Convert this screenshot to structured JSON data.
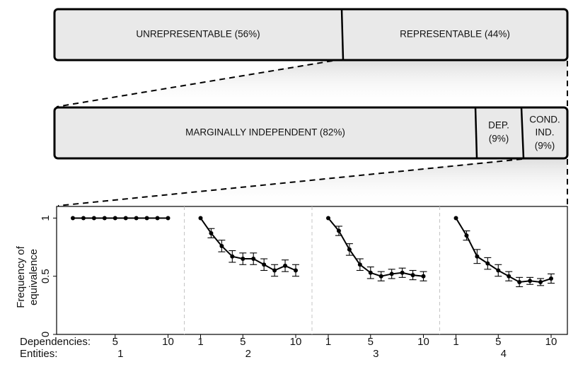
{
  "top_bar": {
    "segments": [
      {
        "label": "UNREPRESENTABLE (56%)",
        "percent": 56
      },
      {
        "label": "REPRESENTABLE (44%)",
        "percent": 44
      }
    ]
  },
  "middle_bar": {
    "segments": [
      {
        "label_lines": [
          "MARGINALLY INDEPENDENT (82%)"
        ],
        "percent": 82
      },
      {
        "label_lines": [
          "DEP.",
          "(9%)"
        ],
        "percent": 9
      },
      {
        "label_lines": [
          "COND.",
          "IND.",
          "(9%)"
        ],
        "percent": 9
      }
    ]
  },
  "chart_data": {
    "type": "line",
    "ylabel": "Frequency of\nequivalence",
    "ylim": [
      0,
      1.1
    ],
    "y_ticks": [
      {
        "value": 0,
        "label": "0"
      },
      {
        "value": 0.5,
        "label": "0.5"
      },
      {
        "value": 1,
        "label": "1"
      }
    ],
    "x_row_label": "Dependencies:",
    "facet_row_label": "Entities:",
    "grid": false,
    "panels": [
      {
        "entities": "1",
        "x_ticks": [
          {
            "value": 5,
            "label": "5"
          },
          {
            "value": 10,
            "label": "10"
          }
        ],
        "x": [
          1,
          2,
          3,
          4,
          5,
          6,
          7,
          8,
          9,
          10
        ],
        "values": [
          1,
          1,
          1,
          1,
          1,
          1,
          1,
          1,
          1,
          1
        ],
        "error": [
          0,
          0,
          0,
          0,
          0,
          0,
          0,
          0,
          0,
          0
        ]
      },
      {
        "entities": "2",
        "x_ticks": [
          {
            "value": 1,
            "label": "1"
          },
          {
            "value": 5,
            "label": "5"
          },
          {
            "value": 10,
            "label": "10"
          }
        ],
        "x": [
          1,
          2,
          3,
          4,
          5,
          6,
          7,
          8,
          9,
          10
        ],
        "values": [
          1.0,
          0.87,
          0.76,
          0.67,
          0.65,
          0.65,
          0.6,
          0.55,
          0.59,
          0.55
        ],
        "error": [
          0.0,
          0.04,
          0.05,
          0.05,
          0.05,
          0.05,
          0.05,
          0.05,
          0.05,
          0.05
        ]
      },
      {
        "entities": "3",
        "x_ticks": [
          {
            "value": 1,
            "label": "1"
          },
          {
            "value": 5,
            "label": "5"
          },
          {
            "value": 10,
            "label": "10"
          }
        ],
        "x": [
          1,
          2,
          3,
          4,
          5,
          6,
          7,
          8,
          9,
          10
        ],
        "values": [
          1.0,
          0.89,
          0.73,
          0.6,
          0.53,
          0.5,
          0.52,
          0.53,
          0.51,
          0.5
        ],
        "error": [
          0.0,
          0.04,
          0.05,
          0.05,
          0.05,
          0.04,
          0.04,
          0.04,
          0.04,
          0.04
        ]
      },
      {
        "entities": "4",
        "x_ticks": [
          {
            "value": 1,
            "label": "1"
          },
          {
            "value": 5,
            "label": "5"
          },
          {
            "value": 10,
            "label": "10"
          }
        ],
        "x": [
          1,
          2,
          3,
          4,
          5,
          6,
          7,
          8,
          9,
          10
        ],
        "values": [
          1.0,
          0.85,
          0.67,
          0.61,
          0.55,
          0.5,
          0.45,
          0.46,
          0.45,
          0.48
        ],
        "error": [
          0.0,
          0.04,
          0.06,
          0.05,
          0.05,
          0.04,
          0.04,
          0.03,
          0.03,
          0.04
        ]
      }
    ]
  }
}
